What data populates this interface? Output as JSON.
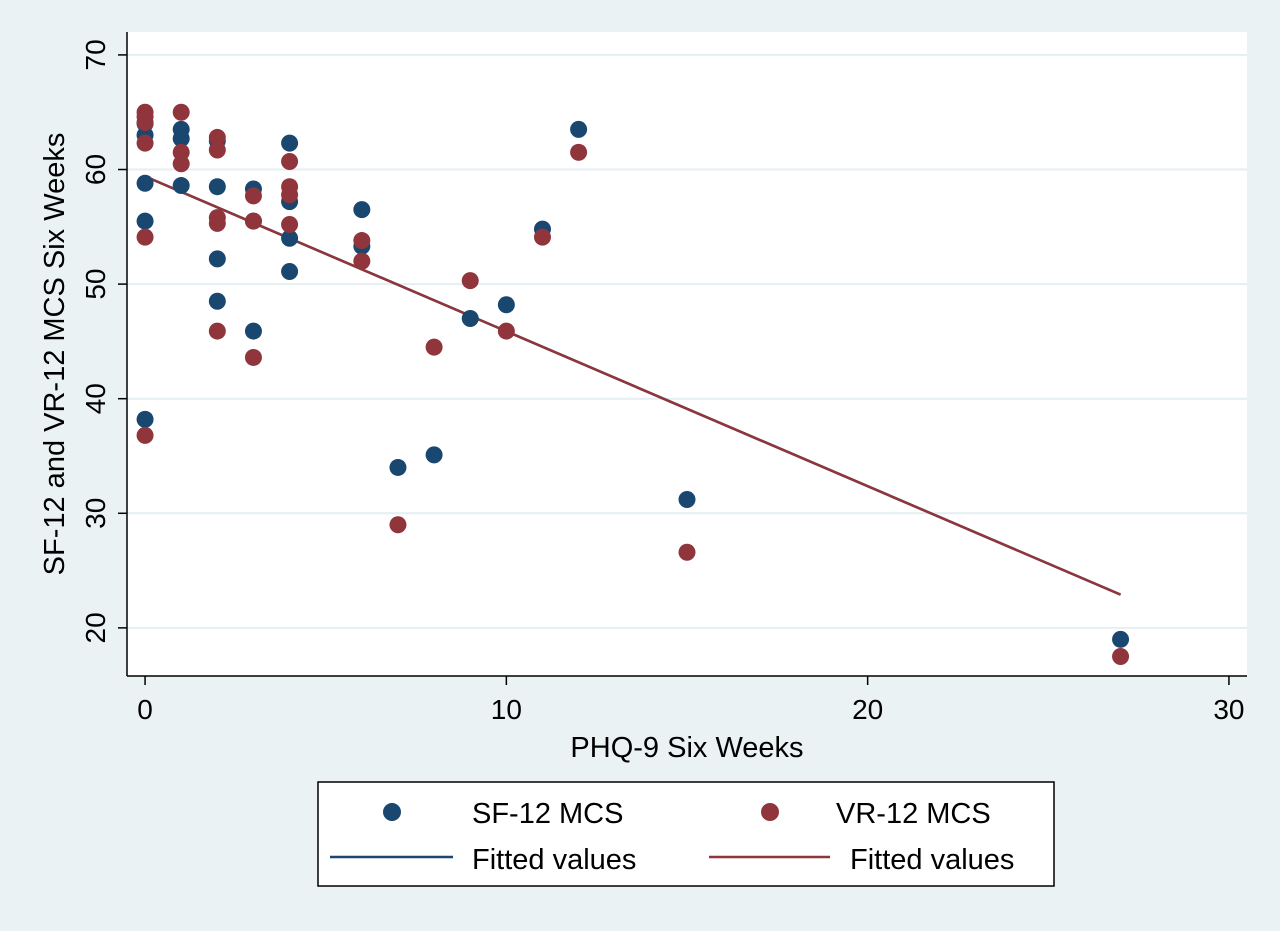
{
  "chart_data": {
    "type": "scatter",
    "title": "",
    "xlabel": "PHQ-9 Six Weeks",
    "ylabel": "SF-12 and VR-12 MCS Six Weeks",
    "xlim": [
      -0.5,
      30.5
    ],
    "ylim": [
      15.8,
      72
    ],
    "xticks": [
      0,
      10,
      20,
      30
    ],
    "yticks": [
      20,
      30,
      40,
      50,
      60,
      70
    ],
    "grid": "horizontal",
    "legend_position": "bottom",
    "colors": {
      "page_background": "#eaf2f3",
      "plot_background": "#ffffff",
      "gridline": "#e4eef3",
      "sf12": "#1a476f",
      "vr12": "#90353b"
    },
    "series": [
      {
        "name": "SF-12 MCS",
        "kind": "scatter",
        "color": "#1a476f",
        "points": [
          [
            0,
            64.0
          ],
          [
            0,
            63.0
          ],
          [
            0,
            58.8
          ],
          [
            0,
            55.5
          ],
          [
            0,
            38.2
          ],
          [
            1,
            63.5
          ],
          [
            1,
            62.7
          ],
          [
            1,
            58.6
          ],
          [
            2,
            62.5
          ],
          [
            2,
            58.5
          ],
          [
            2,
            52.2
          ],
          [
            2,
            48.5
          ],
          [
            3,
            58.3
          ],
          [
            3,
            55.5
          ],
          [
            3,
            45.9
          ],
          [
            4,
            62.3
          ],
          [
            4,
            57.2
          ],
          [
            4,
            54.0
          ],
          [
            4,
            51.1
          ],
          [
            6,
            56.5
          ],
          [
            6,
            53.3
          ],
          [
            7,
            34.0
          ],
          [
            8,
            35.1
          ],
          [
            9,
            47.0
          ],
          [
            10,
            48.2
          ],
          [
            11,
            54.8
          ],
          [
            12,
            63.5
          ],
          [
            15,
            31.2
          ],
          [
            27,
            19.0
          ]
        ]
      },
      {
        "name": "VR-12 MCS",
        "kind": "scatter",
        "color": "#90353b",
        "points": [
          [
            0,
            65.0
          ],
          [
            0,
            64.6
          ],
          [
            0,
            64.1
          ],
          [
            0,
            62.3
          ],
          [
            0,
            54.1
          ],
          [
            0,
            36.8
          ],
          [
            1,
            65.0
          ],
          [
            1,
            61.5
          ],
          [
            1,
            60.5
          ],
          [
            2,
            62.8
          ],
          [
            2,
            61.7
          ],
          [
            2,
            55.8
          ],
          [
            2,
            55.3
          ],
          [
            2,
            45.9
          ],
          [
            3,
            57.7
          ],
          [
            3,
            55.5
          ],
          [
            3,
            43.6
          ],
          [
            4,
            60.7
          ],
          [
            4,
            58.5
          ],
          [
            4,
            57.8
          ],
          [
            4,
            55.2
          ],
          [
            6,
            53.8
          ],
          [
            6,
            52.0
          ],
          [
            7,
            29.0
          ],
          [
            8,
            44.5
          ],
          [
            9,
            50.3
          ],
          [
            10,
            45.9
          ],
          [
            11,
            54.1
          ],
          [
            12,
            61.5
          ],
          [
            15,
            26.6
          ],
          [
            27,
            17.5
          ]
        ]
      },
      {
        "name": "Fitted values",
        "kind": "line",
        "color": "#1a476f",
        "points": [
          [
            0,
            59.4
          ],
          [
            27,
            22.9
          ]
        ]
      },
      {
        "name": "Fitted values",
        "kind": "line",
        "color": "#90353b",
        "points": [
          [
            0,
            59.4
          ],
          [
            27,
            22.9
          ]
        ]
      }
    ]
  }
}
